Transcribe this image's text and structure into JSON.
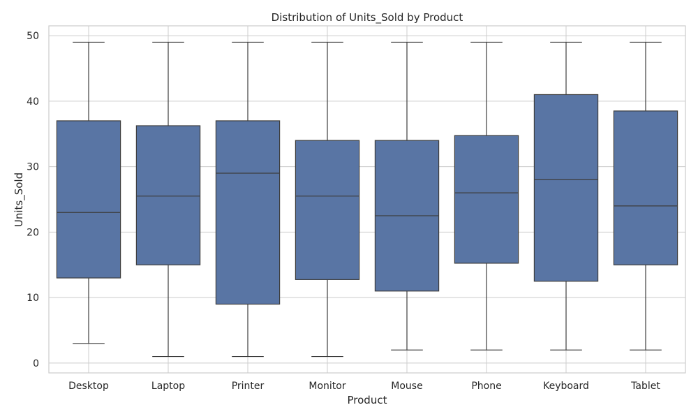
{
  "chart_data": {
    "type": "box",
    "title": "Distribution of Units_Sold by Product",
    "xlabel": "Product",
    "ylabel": "Units_Sold",
    "ylim": [
      -1.5,
      51.5
    ],
    "yticks": [
      0,
      10,
      20,
      30,
      40,
      50
    ],
    "grid": true,
    "box_color": "#5975a4",
    "line_color": "#3d3d3d",
    "categories": [
      "Desktop",
      "Laptop",
      "Printer",
      "Monitor",
      "Mouse",
      "Phone",
      "Keyboard",
      "Tablet"
    ],
    "series": [
      {
        "category": "Desktop",
        "min": 3,
        "q1": 13,
        "median": 23,
        "q3": 37,
        "max": 49
      },
      {
        "category": "Laptop",
        "min": 1,
        "q1": 15,
        "median": 25.5,
        "q3": 36.25,
        "max": 49
      },
      {
        "category": "Printer",
        "min": 1,
        "q1": 9,
        "median": 29,
        "q3": 37,
        "max": 49
      },
      {
        "category": "Monitor",
        "min": 1,
        "q1": 12.75,
        "median": 25.5,
        "q3": 34,
        "max": 49
      },
      {
        "category": "Mouse",
        "min": 2,
        "q1": 11,
        "median": 22.5,
        "q3": 34,
        "max": 49
      },
      {
        "category": "Phone",
        "min": 2,
        "q1": 15.25,
        "median": 26,
        "q3": 34.75,
        "max": 49
      },
      {
        "category": "Keyboard",
        "min": 2,
        "q1": 12.5,
        "median": 28,
        "q3": 41,
        "max": 49
      },
      {
        "category": "Tablet",
        "min": 2,
        "q1": 15,
        "median": 24,
        "q3": 38.5,
        "max": 49
      }
    ]
  }
}
